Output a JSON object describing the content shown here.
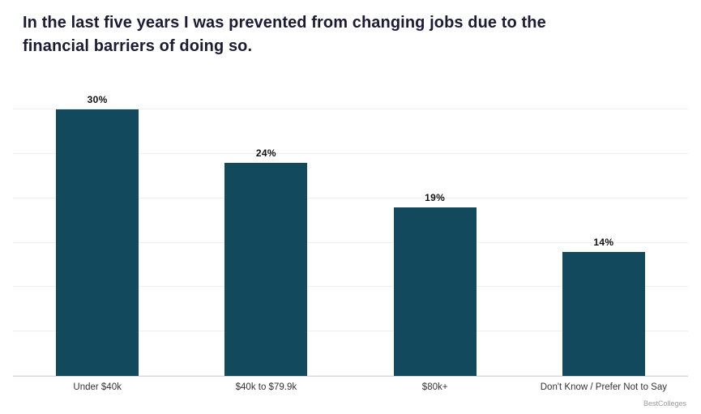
{
  "chart_data": {
    "type": "bar",
    "title": "In the last five years I was prevented from changing jobs due to the financial barriers of doing so.",
    "categories": [
      "Under $40k",
      "$40k to $79.9k",
      "$80k+",
      "Don't Know / Prefer Not to Say"
    ],
    "values": [
      30,
      24,
      19,
      14
    ],
    "value_labels": [
      "30%",
      "24%",
      "19%",
      "14%"
    ],
    "xlabel": "",
    "ylabel": "",
    "ylim": [
      0,
      32.5
    ],
    "grid_step": 5,
    "grid_on": true,
    "legend_position": "none",
    "bar_color": "#12495d"
  },
  "attribution": "BestColleges"
}
